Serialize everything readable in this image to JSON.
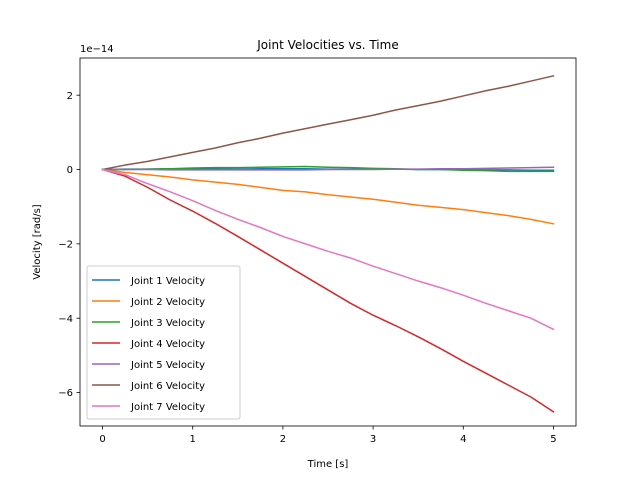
{
  "chart_data": {
    "type": "line",
    "title": "Joint Velocities vs. Time",
    "xlabel": "Time [s]",
    "ylabel": "Velocity [rad/s]",
    "y_offset_text": "1e−14",
    "y_scale_exponent": -14,
    "xlim": [
      -0.25,
      5.25
    ],
    "ylim": [
      -6.9,
      3.0
    ],
    "x_ticks": [
      0,
      1,
      2,
      3,
      4,
      5
    ],
    "x_tick_labels": [
      "0",
      "1",
      "2",
      "3",
      "4",
      "5"
    ],
    "y_ticks": [
      -6,
      -4,
      -2,
      0,
      2
    ],
    "y_tick_labels": [
      "−6",
      "−4",
      "−2",
      "0",
      "2"
    ],
    "grid": false,
    "legend_position": "lower-left",
    "x": [
      0,
      0.25,
      0.5,
      0.75,
      1,
      1.25,
      1.5,
      1.75,
      2,
      2.25,
      2.5,
      2.75,
      3,
      3.25,
      3.5,
      3.75,
      4,
      4.25,
      4.5,
      4.75,
      5
    ],
    "series": [
      {
        "name": "Joint 1 Velocity",
        "color": "#1f77b4",
        "values": [
          0,
          0.01,
          0.01,
          0.02,
          0.02,
          0.02,
          0.01,
          0.02,
          0.02,
          0.02,
          0.01,
          0.01,
          0.01,
          0.01,
          0.0,
          0.0,
          -0.01,
          -0.01,
          -0.01,
          -0.02,
          -0.02
        ]
      },
      {
        "name": "Joint 2 Velocity",
        "color": "#ff7f0e",
        "values": [
          0,
          -0.08,
          -0.14,
          -0.2,
          -0.28,
          -0.34,
          -0.4,
          -0.48,
          -0.56,
          -0.6,
          -0.68,
          -0.74,
          -0.8,
          -0.88,
          -0.96,
          -1.02,
          -1.08,
          -1.16,
          -1.24,
          -1.34,
          -1.46
        ]
      },
      {
        "name": "Joint 3 Velocity",
        "color": "#2ca02c",
        "values": [
          0,
          0.0,
          0.01,
          0.02,
          0.04,
          0.05,
          0.05,
          0.06,
          0.07,
          0.08,
          0.06,
          0.05,
          0.03,
          0.02,
          0.0,
          0.0,
          -0.02,
          -0.03,
          -0.05,
          -0.05,
          -0.05
        ]
      },
      {
        "name": "Joint 4 Velocity",
        "color": "#d62728",
        "values": [
          0,
          -0.18,
          -0.48,
          -0.82,
          -1.12,
          -1.45,
          -1.8,
          -2.16,
          -2.52,
          -2.88,
          -3.24,
          -3.6,
          -3.92,
          -4.2,
          -4.5,
          -4.82,
          -5.16,
          -5.48,
          -5.8,
          -6.12,
          -6.52
        ]
      },
      {
        "name": "Joint 5 Velocity",
        "color": "#9467bd",
        "values": [
          0,
          0.0,
          0.0,
          -0.01,
          -0.01,
          -0.01,
          -0.01,
          -0.01,
          -0.01,
          -0.01,
          0.0,
          0.0,
          0.0,
          0.01,
          0.01,
          0.02,
          0.02,
          0.03,
          0.04,
          0.05,
          0.06
        ]
      },
      {
        "name": "Joint 6 Velocity",
        "color": "#8c564b",
        "values": [
          0,
          0.12,
          0.22,
          0.34,
          0.46,
          0.58,
          0.72,
          0.84,
          0.98,
          1.1,
          1.22,
          1.34,
          1.46,
          1.6,
          1.72,
          1.84,
          1.98,
          2.12,
          2.24,
          2.38,
          2.52
        ]
      },
      {
        "name": "Joint 7 Velocity",
        "color": "#e377c2",
        "values": [
          0,
          -0.14,
          -0.38,
          -0.6,
          -0.84,
          -1.1,
          -1.34,
          -1.56,
          -1.8,
          -2.0,
          -2.2,
          -2.38,
          -2.6,
          -2.8,
          -3.0,
          -3.18,
          -3.38,
          -3.6,
          -3.8,
          -4.0,
          -4.3
        ]
      }
    ]
  }
}
